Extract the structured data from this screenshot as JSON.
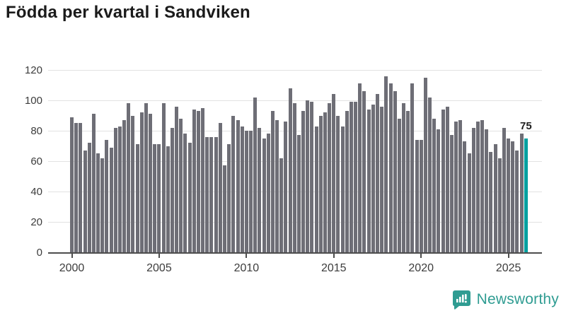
{
  "title": "Födda per kvartal i Sandviken",
  "annotation": {
    "latest_value_label": "75"
  },
  "logo": {
    "brand": "Newsworthy",
    "icon": "newsworthy-speech-bubble-bar-chart-icon"
  },
  "colors": {
    "bar": "#6e6e76",
    "highlight": "#00a0a0",
    "gridline": "#e2e2e2",
    "axis": "#4d4d4d",
    "tick_text": "#3c3c3c",
    "title_text": "#1b1b1b",
    "logo_teal": "#2f9c92"
  },
  "chart_data": {
    "type": "bar",
    "title": "Födda per kvartal i Sandviken",
    "x_period": {
      "start": "2000-Q1",
      "end": "2026-Q1",
      "frequency": "quarterly"
    },
    "x_tick_labels": [
      "2000",
      "2005",
      "2010",
      "2015",
      "2020",
      "2025"
    ],
    "y_tick_labels": [
      0,
      20,
      40,
      60,
      80,
      100,
      120
    ],
    "ylim": [
      0,
      120
    ],
    "grid": "horizontal",
    "legend": "none",
    "highlighted_bar": {
      "period": "2026-Q1",
      "value": 75,
      "label": "75"
    },
    "values": [
      89,
      85,
      85,
      67,
      72,
      91,
      65,
      62,
      74,
      69,
      82,
      83,
      87,
      98,
      90,
      71,
      92,
      98,
      91,
      71,
      71,
      98,
      70,
      82,
      96,
      88,
      78,
      72,
      94,
      93,
      95,
      76,
      76,
      76,
      85,
      57,
      71,
      90,
      87,
      83,
      80,
      80,
      102,
      82,
      75,
      78,
      93,
      87,
      62,
      86,
      108,
      98,
      77,
      93,
      100,
      99,
      83,
      90,
      92,
      98,
      104,
      90,
      83,
      93,
      99,
      99,
      111,
      106,
      94,
      97,
      104,
      96,
      116,
      111,
      106,
      88,
      98,
      93,
      111,
      74,
      74,
      115,
      102,
      88,
      81,
      94,
      96,
      77,
      86,
      87,
      73,
      65,
      82,
      86,
      87,
      81,
      66,
      71,
      62,
      82,
      75,
      73,
      67,
      78,
      75
    ]
  }
}
